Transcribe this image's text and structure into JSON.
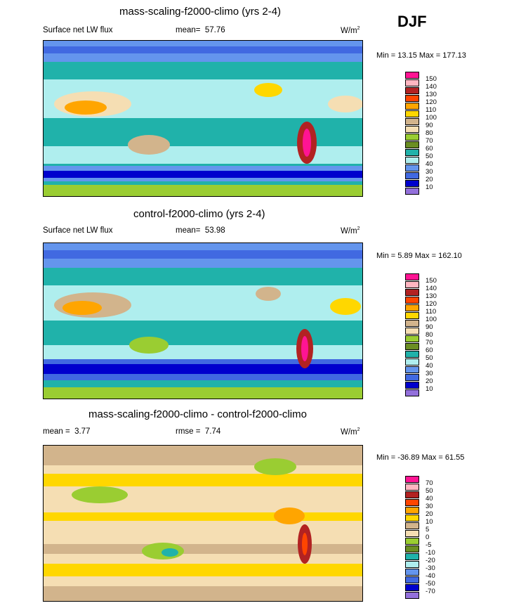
{
  "season": "DJF",
  "panels": [
    {
      "title": "mass-scaling-f2000-climo (yrs 2-4)",
      "variable": "Surface net LW flux",
      "stat1_label": "mean=",
      "stat1_value": "57.76",
      "stat2_label": "",
      "stat2_value": "",
      "units_base": "W/m",
      "units_sup": "2",
      "min_label": "Min =",
      "min_value": "13.15",
      "max_label": "Max =",
      "max_value": "177.13",
      "colorbar": {
        "colors": [
          "#ff1493",
          "#ffb6c1",
          "#b22222",
          "#ff4500",
          "#ffa500",
          "#ffd700",
          "#d2b48c",
          "#f5deb3",
          "#9acd32",
          "#6b8e23",
          "#20b2aa",
          "#afeeee",
          "#6495ed",
          "#4169e1",
          "#0000cd",
          "#9370db"
        ],
        "labels": [
          "150",
          "140",
          "130",
          "120",
          "110",
          "100",
          "90",
          "80",
          "70",
          "60",
          "50",
          "40",
          "30",
          "20",
          "10"
        ]
      }
    },
    {
      "title": "control-f2000-climo (yrs 2-4)",
      "variable": "Surface net LW flux",
      "stat1_label": "mean=",
      "stat1_value": "53.98",
      "stat2_label": "",
      "stat2_value": "",
      "units_base": "W/m",
      "units_sup": "2",
      "min_label": "Min =",
      "min_value": "5.89",
      "max_label": "Max =",
      "max_value": "162.10",
      "colorbar": {
        "colors": [
          "#ff1493",
          "#ffb6c1",
          "#b22222",
          "#ff4500",
          "#ffa500",
          "#ffd700",
          "#d2b48c",
          "#f5deb3",
          "#9acd32",
          "#6b8e23",
          "#20b2aa",
          "#afeeee",
          "#6495ed",
          "#4169e1",
          "#0000cd",
          "#9370db"
        ],
        "labels": [
          "150",
          "140",
          "130",
          "120",
          "110",
          "100",
          "90",
          "80",
          "70",
          "60",
          "50",
          "40",
          "30",
          "20",
          "10"
        ]
      }
    },
    {
      "title": "mass-scaling-f2000-climo - control-f2000-climo",
      "variable": "",
      "stat1_label": "mean =",
      "stat1_value": "3.77",
      "stat2_label": "rmse =",
      "stat2_value": "7.74",
      "units_base": "W/m",
      "units_sup": "2",
      "min_label": "Min =",
      "min_value": "-36.89",
      "max_label": "Max =",
      "max_value": "61.55",
      "colorbar": {
        "colors": [
          "#ff1493",
          "#ffb6c1",
          "#b22222",
          "#ff4500",
          "#ffa500",
          "#ffd700",
          "#d2b48c",
          "#f5deb3",
          "#9acd32",
          "#6b8e23",
          "#20b2aa",
          "#afeeee",
          "#6495ed",
          "#4169e1",
          "#0000cd",
          "#9370db"
        ],
        "labels": [
          "70",
          "50",
          "40",
          "30",
          "20",
          "10",
          "5",
          "0",
          "-5",
          "-10",
          "-20",
          "-30",
          "-40",
          "-50",
          "-70"
        ]
      }
    }
  ],
  "chart_data": [
    {
      "type": "heatmap",
      "title": "mass-scaling-f2000-climo (yrs 2-4)",
      "subtitle": "Surface net LW flux",
      "mean": 57.76,
      "min": 13.15,
      "max": 177.13,
      "units": "W/m2",
      "contour_levels": [
        10,
        20,
        30,
        40,
        50,
        60,
        70,
        80,
        90,
        100,
        110,
        120,
        130,
        140,
        150
      ],
      "field": "global map"
    },
    {
      "type": "heatmap",
      "title": "control-f2000-climo (yrs 2-4)",
      "subtitle": "Surface net LW flux",
      "mean": 53.98,
      "min": 5.89,
      "max": 162.1,
      "units": "W/m2",
      "contour_levels": [
        10,
        20,
        30,
        40,
        50,
        60,
        70,
        80,
        90,
        100,
        110,
        120,
        130,
        140,
        150
      ],
      "field": "global map"
    },
    {
      "type": "heatmap",
      "title": "mass-scaling-f2000-climo - control-f2000-climo",
      "mean": 3.77,
      "rmse": 7.74,
      "min": -36.89,
      "max": 61.55,
      "units": "W/m2",
      "contour_levels": [
        -70,
        -50,
        -40,
        -30,
        -20,
        -10,
        -5,
        0,
        5,
        10,
        20,
        30,
        40,
        50,
        70
      ],
      "field": "global map difference"
    }
  ]
}
